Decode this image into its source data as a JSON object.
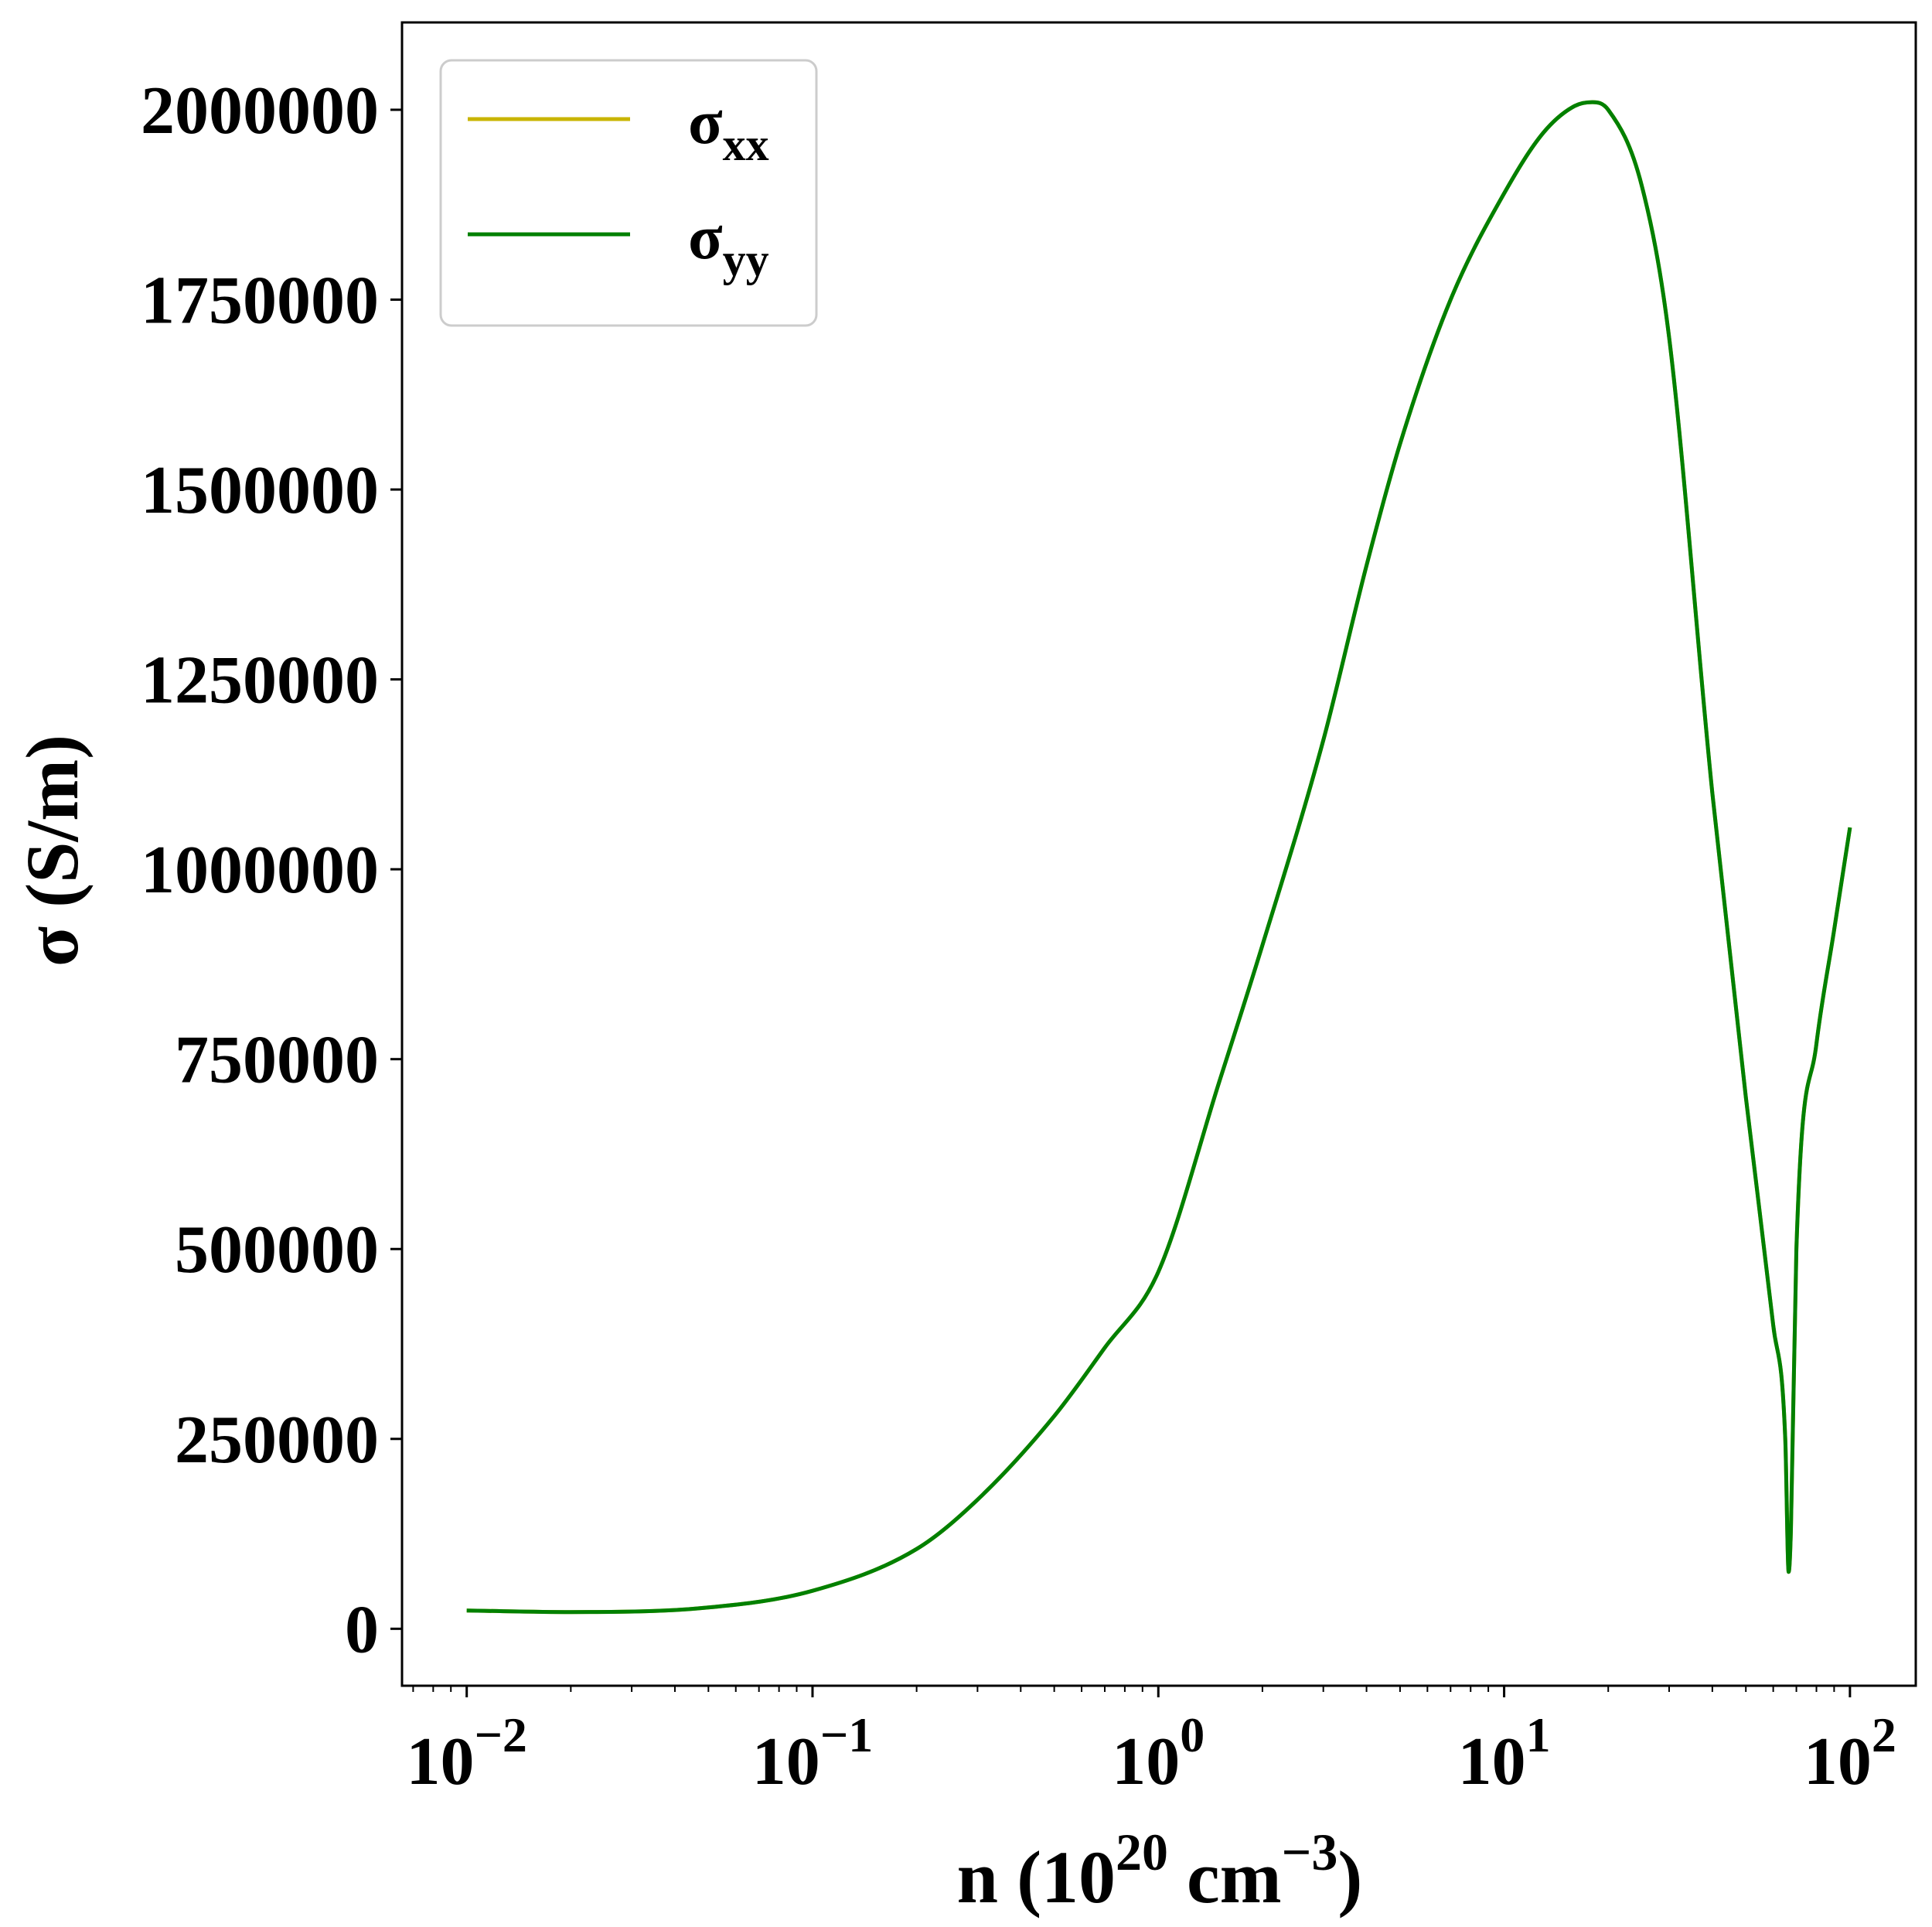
{
  "chart_data": {
    "type": "line",
    "xlabel": {
      "base": "n (10",
      "sup1": "20",
      "mid": " cm",
      "sup2": "−3",
      "end": ")"
    },
    "ylabel": "σ (S/m)",
    "xscale": "log",
    "xlim": [
      0.0065,
      155
    ],
    "ylim": [
      -75000,
      2115000
    ],
    "x_ticks": [
      {
        "value": 0.01,
        "base": "10",
        "exp": "−2"
      },
      {
        "value": 0.1,
        "base": "10",
        "exp": "−1"
      },
      {
        "value": 1,
        "base": "10",
        "exp": "0"
      },
      {
        "value": 10,
        "base": "10",
        "exp": "1"
      },
      {
        "value": 100,
        "base": "10",
        "exp": "2"
      }
    ],
    "y_ticks": [
      {
        "value": 0,
        "label": "0"
      },
      {
        "value": 250000,
        "label": "250000"
      },
      {
        "value": 500000,
        "label": "500000"
      },
      {
        "value": 750000,
        "label": "750000"
      },
      {
        "value": 1000000,
        "label": "1000000"
      },
      {
        "value": 1250000,
        "label": "1250000"
      },
      {
        "value": 1500000,
        "label": "1500000"
      },
      {
        "value": 1750000,
        "label": "1750000"
      },
      {
        "value": 2000000,
        "label": "2000000"
      }
    ],
    "legend_position": "top-left",
    "series": [
      {
        "name": "σ",
        "sub": "xx",
        "color": "#c8b400",
        "x": [
          0.01,
          0.02,
          0.05,
          0.1,
          0.2,
          0.3,
          0.5,
          0.7,
          1.0,
          1.5,
          2.0,
          3.0,
          4.0,
          5.0,
          7.0,
          10.0,
          13.0,
          16.0,
          18.0,
          20.0,
          25.0,
          30.0,
          40.0,
          50.0,
          60.0,
          65.0,
          66.5,
          67.5,
          70.0,
          80.0,
          90.0,
          100.0
        ],
        "y": [
          24000,
          22000,
          28000,
          50000,
          105000,
          170000,
          280000,
          370000,
          470000,
          720000,
          900000,
          1170000,
          1400000,
          1560000,
          1750000,
          1890000,
          1970000,
          2005000,
          2010000,
          2000000,
          1900000,
          1700000,
          1100000,
          700000,
          400000,
          250000,
          75000,
          130000,
          500000,
          770000,
          920000,
          1055000
        ]
      },
      {
        "name": "σ",
        "sub": "yy",
        "color": "#008000",
        "x": [
          0.01,
          0.02,
          0.05,
          0.1,
          0.2,
          0.3,
          0.5,
          0.7,
          1.0,
          1.5,
          2.0,
          3.0,
          4.0,
          5.0,
          7.0,
          10.0,
          13.0,
          16.0,
          18.0,
          20.0,
          25.0,
          30.0,
          40.0,
          50.0,
          60.0,
          65.0,
          66.5,
          67.5,
          70.0,
          80.0,
          90.0,
          100.0
        ],
        "y": [
          24000,
          22000,
          28000,
          50000,
          105000,
          170000,
          280000,
          370000,
          470000,
          720000,
          900000,
          1170000,
          1400000,
          1560000,
          1750000,
          1890000,
          1970000,
          2005000,
          2010000,
          2000000,
          1900000,
          1700000,
          1100000,
          700000,
          400000,
          250000,
          75000,
          130000,
          500000,
          770000,
          920000,
          1055000
        ]
      }
    ]
  }
}
